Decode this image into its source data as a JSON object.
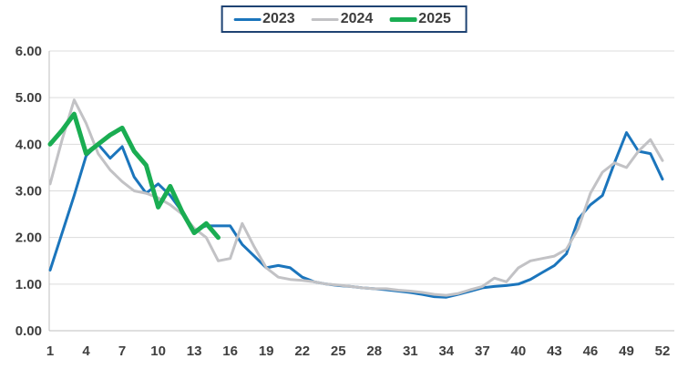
{
  "legend": {
    "border_color": "#1F4373",
    "items": [
      {
        "label": "2023",
        "color": "#1B75BC",
        "thickness": 3
      },
      {
        "label": "2024",
        "color": "#C2C2C5",
        "thickness": 3
      },
      {
        "label": "2025",
        "color": "#1AAD52",
        "thickness": 5
      }
    ]
  },
  "chart_data": {
    "type": "line",
    "title": "",
    "xlabel": "",
    "ylabel": "",
    "xlim": [
      1,
      52
    ],
    "ylim": [
      0,
      6
    ],
    "grid": "horizontal",
    "legend_position": "top-center",
    "x_ticks": [
      "1",
      "4",
      "7",
      "10",
      "13",
      "16",
      "19",
      "22",
      "25",
      "28",
      "31",
      "34",
      "37",
      "40",
      "43",
      "46",
      "49",
      "52"
    ],
    "x_tick_weeks": [
      1,
      4,
      7,
      10,
      13,
      16,
      19,
      22,
      25,
      28,
      31,
      34,
      37,
      40,
      43,
      46,
      49,
      52
    ],
    "y_ticks": [
      "6.00",
      "5.00",
      "4.00",
      "3.00",
      "2.00",
      "1.00",
      "0.00"
    ],
    "y_tick_values": [
      6,
      5,
      4,
      3,
      2,
      1,
      0
    ],
    "series": [
      {
        "name": "2023",
        "color": "#1B75BC",
        "width": 3,
        "start_week": 1,
        "values": [
          1.3,
          2.1,
          2.9,
          3.75,
          4.0,
          3.7,
          3.95,
          3.3,
          2.95,
          3.15,
          2.9,
          2.55,
          2.15,
          2.25,
          2.25,
          2.25,
          1.85,
          1.6,
          1.35,
          1.4,
          1.35,
          1.15,
          1.05,
          1.0,
          0.97,
          0.95,
          0.92,
          0.9,
          0.88,
          0.85,
          0.82,
          0.78,
          0.73,
          0.72,
          0.78,
          0.85,
          0.92,
          0.95,
          0.97,
          1.0,
          1.1,
          1.25,
          1.4,
          1.65,
          2.4,
          2.7,
          2.9,
          3.6,
          4.25,
          3.85,
          3.8,
          3.25
        ]
      },
      {
        "name": "2024",
        "color": "#C2C2C5",
        "width": 3,
        "start_week": 1,
        "values": [
          3.15,
          4.1,
          4.95,
          4.45,
          3.8,
          3.45,
          3.2,
          3.0,
          2.95,
          2.85,
          2.7,
          2.5,
          2.2,
          2.0,
          1.5,
          1.55,
          2.3,
          1.8,
          1.35,
          1.15,
          1.1,
          1.08,
          1.05,
          1.0,
          0.98,
          0.95,
          0.92,
          0.9,
          0.9,
          0.87,
          0.85,
          0.82,
          0.78,
          0.76,
          0.8,
          0.88,
          0.95,
          1.13,
          1.05,
          1.35,
          1.5,
          1.55,
          1.6,
          1.75,
          2.2,
          2.95,
          3.4,
          3.6,
          3.5,
          3.85,
          4.1,
          3.65
        ]
      },
      {
        "name": "2025",
        "color": "#1AAD52",
        "width": 5,
        "start_week": 1,
        "values": [
          4.0,
          4.3,
          4.65,
          3.8,
          4.0,
          4.2,
          4.35,
          3.85,
          3.55,
          2.65,
          3.1,
          2.55,
          2.1,
          2.3,
          2.0
        ]
      }
    ]
  },
  "style": {
    "gridline_color": "#DCDCDC",
    "axis_color": "#BFBFBF",
    "tick_label_color": "#3F3F3F"
  }
}
